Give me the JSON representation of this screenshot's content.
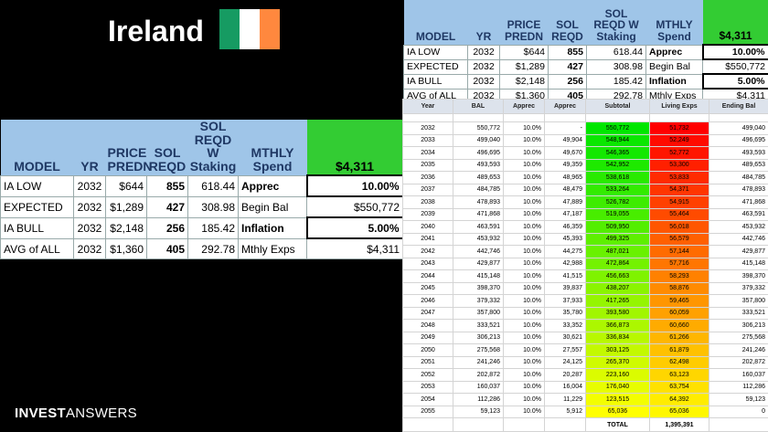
{
  "header": {
    "title": "Ireland"
  },
  "summary": {
    "columns": [
      "MODEL",
      "YR",
      "PRICE\nPREDN",
      "SOL\nREQD",
      "SOL\nREQD W\nStaking",
      "MTHLY\nSpend",
      "$4,311"
    ],
    "rows": [
      [
        "IA LOW",
        "2032",
        "$644",
        "855",
        "618.44",
        "Apprec",
        "10.00%"
      ],
      [
        "EXPECTED",
        "2032",
        "$1,289",
        "427",
        "308.98",
        "Begin Bal",
        "$550,772"
      ],
      [
        "IA BULL",
        "2032",
        "$2,148",
        "256",
        "185.42",
        "Inflation",
        "5.00%"
      ],
      [
        "AVG of ALL",
        "2032",
        "$1,360",
        "405",
        "292.78",
        "Mthly Exps",
        "$4,311"
      ]
    ]
  },
  "projection": {
    "columns": [
      "Year",
      "BAL",
      "Apprec",
      "Apprec",
      "Subtotal",
      "Living Exps",
      "Ending Bal"
    ],
    "rows": [
      [
        "2032",
        "550,772",
        "10.0%",
        "-",
        "550,772",
        "51,732",
        "499,040"
      ],
      [
        "2033",
        "499,040",
        "10.0%",
        "49,904",
        "548,944",
        "52,249",
        "496,695"
      ],
      [
        "2034",
        "496,695",
        "10.0%",
        "49,670",
        "546,365",
        "52,772",
        "493,593"
      ],
      [
        "2035",
        "493,593",
        "10.0%",
        "49,359",
        "542,952",
        "53,300",
        "489,653"
      ],
      [
        "2036",
        "489,653",
        "10.0%",
        "48,965",
        "538,618",
        "53,833",
        "484,785"
      ],
      [
        "2037",
        "484,785",
        "10.0%",
        "48,479",
        "533,264",
        "54,371",
        "478,893"
      ],
      [
        "2038",
        "478,893",
        "10.0%",
        "47,889",
        "526,782",
        "54,915",
        "471,868"
      ],
      [
        "2039",
        "471,868",
        "10.0%",
        "47,187",
        "519,055",
        "55,464",
        "463,591"
      ],
      [
        "2040",
        "463,591",
        "10.0%",
        "46,359",
        "509,950",
        "56,018",
        "453,932"
      ],
      [
        "2041",
        "453,932",
        "10.0%",
        "45,393",
        "499,325",
        "56,579",
        "442,746"
      ],
      [
        "2042",
        "442,746",
        "10.0%",
        "44,275",
        "487,021",
        "57,144",
        "429,877"
      ],
      [
        "2043",
        "429,877",
        "10.0%",
        "42,988",
        "472,864",
        "57,716",
        "415,148"
      ],
      [
        "2044",
        "415,148",
        "10.0%",
        "41,515",
        "456,663",
        "58,293",
        "398,370"
      ],
      [
        "2045",
        "398,370",
        "10.0%",
        "39,837",
        "438,207",
        "58,876",
        "379,332"
      ],
      [
        "2046",
        "379,332",
        "10.0%",
        "37,933",
        "417,265",
        "59,465",
        "357,800"
      ],
      [
        "2047",
        "357,800",
        "10.0%",
        "35,780",
        "393,580",
        "60,059",
        "333,521"
      ],
      [
        "2048",
        "333,521",
        "10.0%",
        "33,352",
        "366,873",
        "60,660",
        "306,213"
      ],
      [
        "2049",
        "306,213",
        "10.0%",
        "30,621",
        "336,834",
        "61,266",
        "275,568"
      ],
      [
        "2050",
        "275,568",
        "10.0%",
        "27,557",
        "303,125",
        "61,879",
        "241,246"
      ],
      [
        "2051",
        "241,246",
        "10.0%",
        "24,125",
        "265,370",
        "62,498",
        "202,872"
      ],
      [
        "2052",
        "202,872",
        "10.0%",
        "20,287",
        "223,160",
        "63,123",
        "160,037"
      ],
      [
        "2053",
        "160,037",
        "10.0%",
        "16,004",
        "176,040",
        "63,754",
        "112,286"
      ],
      [
        "2054",
        "112,286",
        "10.0%",
        "11,229",
        "123,515",
        "64,392",
        "59,123"
      ],
      [
        "2055",
        "59,123",
        "10.0%",
        "5,912",
        "65,036",
        "65,036",
        "0"
      ]
    ],
    "total_label": "TOTAL",
    "total": "1,395,391"
  },
  "footer": {
    "brand_bold": "INVEST",
    "brand_light": "ANSWERS"
  }
}
